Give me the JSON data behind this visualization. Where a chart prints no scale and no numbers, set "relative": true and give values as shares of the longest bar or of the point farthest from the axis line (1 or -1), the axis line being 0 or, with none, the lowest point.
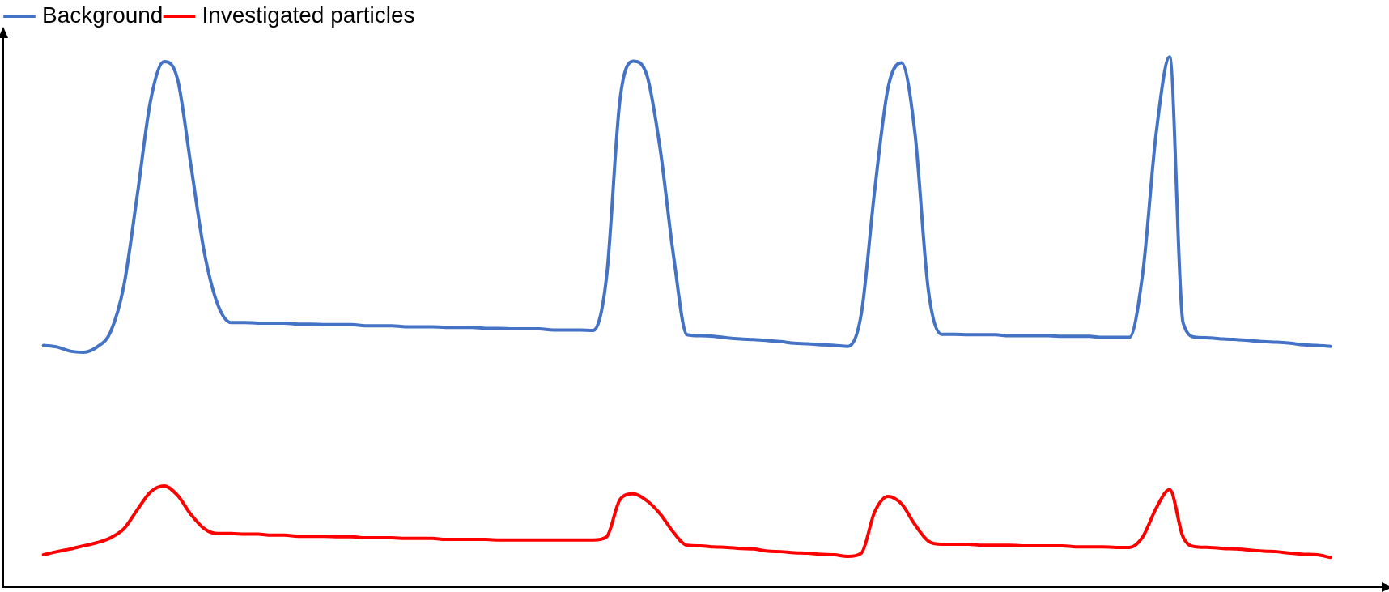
{
  "chart_data": {
    "type": "line",
    "relative": true,
    "legend": "top",
    "marker": "none",
    "line_style": "solid",
    "grid": false,
    "tick_labels": false,
    "categories": [
      null,
      null,
      null,
      null,
      null,
      null,
      null,
      null,
      null,
      null,
      null,
      null,
      null,
      null,
      null,
      null,
      null,
      null,
      null,
      null,
      null,
      null,
      null,
      null,
      null,
      null,
      null,
      null,
      null,
      null,
      null,
      null,
      null,
      null,
      null,
      null,
      null,
      null,
      null,
      null,
      null,
      null,
      null,
      null,
      null,
      null,
      null,
      null,
      null,
      null,
      null,
      null,
      null,
      null,
      null,
      null,
      null,
      null,
      null,
      null,
      null,
      null,
      null,
      null,
      null,
      null,
      null,
      null,
      null,
      null,
      null,
      null,
      null,
      null,
      null,
      null,
      null,
      null,
      null,
      null,
      null,
      null,
      null,
      null,
      null,
      null,
      null,
      null,
      null,
      null,
      null,
      null,
      null,
      null,
      null,
      null,
      null,
      null,
      null,
      null,
      null,
      null,
      null,
      null
    ],
    "series": [
      {
        "name": "Background",
        "color": "#4472c4",
        "values": [
          null,
          null,
          null,
          0.456,
          0.453,
          0.445,
          0.443,
          0.453,
          0.481,
          0.569,
          0.74,
          0.919,
          0.991,
          0.958,
          0.795,
          0.631,
          0.533,
          0.499,
          0.499,
          0.498,
          0.498,
          0.498,
          0.496,
          0.496,
          0.495,
          0.495,
          0.495,
          0.493,
          0.493,
          0.493,
          0.491,
          0.491,
          0.491,
          0.49,
          0.49,
          0.49,
          0.488,
          0.488,
          0.487,
          0.487,
          0.487,
          0.485,
          0.485,
          0.485,
          0.484,
          0.585,
          0.919,
          0.992,
          0.966,
          0.826,
          0.624,
          0.476,
          0.474,
          0.473,
          0.47,
          0.468,
          0.467,
          0.465,
          0.463,
          0.46,
          0.459,
          0.457,
          0.456,
          0.454,
          0.515,
          0.748,
          0.942,
          0.989,
          0.857,
          0.561,
          0.477,
          0.477,
          0.476,
          0.476,
          0.476,
          0.474,
          0.474,
          0.474,
          0.474,
          0.473,
          0.473,
          0.473,
          0.471,
          0.471,
          0.471,
          0.593,
          0.857,
          1,
          0.499,
          0.471,
          0.47,
          0.468,
          0.467,
          0.465,
          0.463,
          0.462,
          0.46,
          0.457,
          0.456,
          0.454,
          null,
          null,
          null,
          null
        ]
      },
      {
        "name": "Investigated particles",
        "color": "#ff0000",
        "values": [
          null,
          null,
          null,
          0.061,
          0.067,
          0.072,
          0.078,
          0.084,
          0.093,
          0.11,
          0.146,
          0.18,
          0.191,
          0.173,
          0.137,
          0.11,
          0.101,
          0.101,
          0.1,
          0.1,
          0.098,
          0.098,
          0.096,
          0.096,
          0.096,
          0.095,
          0.095,
          0.093,
          0.093,
          0.093,
          0.092,
          0.092,
          0.092,
          0.09,
          0.09,
          0.09,
          0.09,
          0.089,
          0.089,
          0.089,
          0.089,
          0.089,
          0.089,
          0.089,
          0.089,
          0.095,
          0.165,
          0.176,
          0.163,
          0.138,
          0.103,
          0.079,
          0.078,
          0.076,
          0.075,
          0.073,
          0.072,
          0.068,
          0.067,
          0.065,
          0.064,
          0.062,
          0.061,
          0.058,
          0.064,
          0.142,
          0.171,
          0.157,
          0.118,
          0.087,
          0.081,
          0.081,
          0.081,
          0.079,
          0.079,
          0.079,
          0.078,
          0.078,
          0.078,
          0.078,
          0.076,
          0.076,
          0.076,
          0.075,
          0.075,
          0.095,
          0.149,
          0.184,
          0.095,
          0.076,
          0.075,
          0.073,
          0.072,
          0.07,
          0.068,
          0.067,
          0.064,
          0.062,
          0.061,
          0.056,
          null,
          null,
          null,
          null
        ]
      }
    ]
  }
}
